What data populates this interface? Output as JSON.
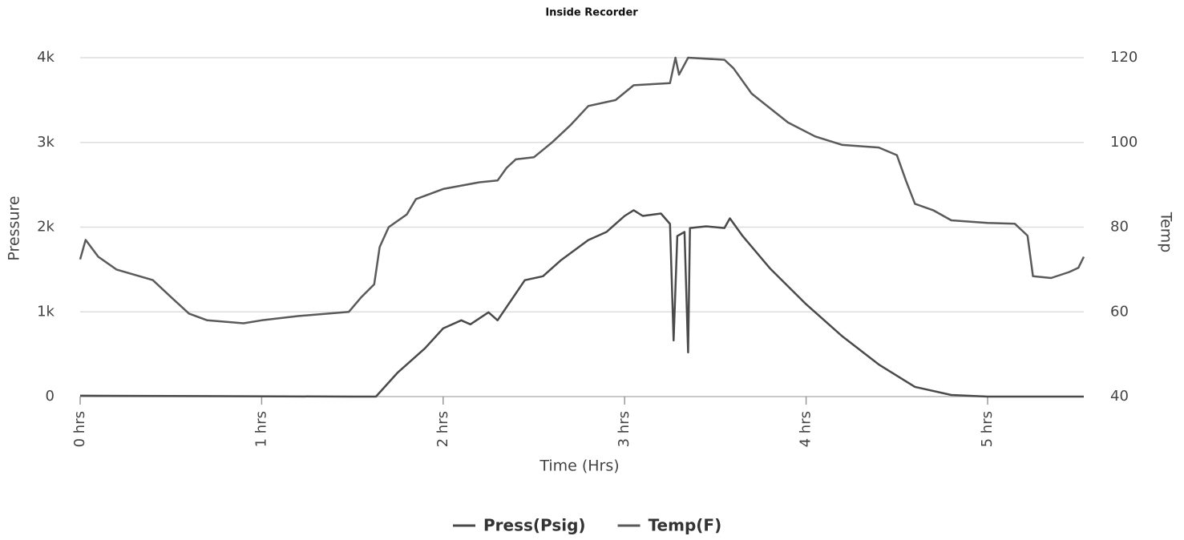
{
  "chart_data": {
    "type": "line",
    "title": "Inside Recorder",
    "x_label": "Time (Hrs)",
    "y_label": "Pressure",
    "y2_label": "Temp",
    "xlim": [
      0,
      5.53
    ],
    "xticks": [
      {
        "value": 0,
        "label": "0 hrs"
      },
      {
        "value": 1,
        "label": "1 hrs"
      },
      {
        "value": 2,
        "label": "2 hrs"
      },
      {
        "value": 3,
        "label": "3 hrs"
      },
      {
        "value": 4,
        "label": "4 hrs"
      },
      {
        "value": 5,
        "label": "5 hrs"
      }
    ],
    "ylim": [
      0,
      4000
    ],
    "yticks": [
      0,
      {
        "value": 1000,
        "label": "1k"
      },
      {
        "value": 2000,
        "label": "2k"
      },
      {
        "value": 3000,
        "label": "3k"
      },
      {
        "value": 4000,
        "label": "4k"
      }
    ],
    "y2lim": [
      40,
      120
    ],
    "y2ticks": [
      40,
      60,
      80,
      100,
      120
    ],
    "grid": true,
    "legend": "bottom",
    "series": [
      {
        "name": "Press(Psig)",
        "color": "#4a4a4a",
        "x": [
          0,
          1.5,
          1.63,
          1.75,
          1.9,
          2.0,
          2.1,
          2.15,
          2.25,
          2.3,
          2.45,
          2.55,
          2.65,
          2.8,
          2.9,
          3.0,
          3.05,
          3.1,
          3.2,
          3.25,
          3.27,
          3.29,
          3.33,
          3.35,
          3.36,
          3.45,
          3.55,
          3.58,
          3.65,
          3.8,
          4.0,
          4.2,
          4.4,
          4.6,
          4.8,
          5.0,
          5.53
        ],
        "values": [
          10,
          0,
          0,
          285,
          570,
          805,
          900,
          853,
          995,
          900,
          1374,
          1420,
          1611,
          1848,
          1943,
          2132,
          2200,
          2132,
          2161,
          2038,
          663,
          1895,
          1943,
          521,
          1990,
          2009,
          1990,
          2104,
          1895,
          1516,
          1090,
          710,
          379,
          114,
          19,
          0,
          0
        ]
      },
      {
        "name": "Temp(F)",
        "color": "#5a5a5a",
        "axis": "y2",
        "x": [
          0,
          0.03,
          0.1,
          0.2,
          0.4,
          0.5,
          0.6,
          0.7,
          0.9,
          1.0,
          1.2,
          1.48,
          1.55,
          1.62,
          1.65,
          1.7,
          1.8,
          1.85,
          2.0,
          2.2,
          2.3,
          2.35,
          2.4,
          2.5,
          2.6,
          2.7,
          2.8,
          2.95,
          3.05,
          3.25,
          3.28,
          3.3,
          3.35,
          3.55,
          3.6,
          3.7,
          3.9,
          4.05,
          4.2,
          4.4,
          4.5,
          4.55,
          4.6,
          4.7,
          4.8,
          5.0,
          5.15,
          5.22,
          5.25,
          5.35,
          5.45,
          5.5,
          5.53
        ],
        "values": [
          72.4,
          77,
          73,
          70,
          67.5,
          63.5,
          59.6,
          58,
          57.3,
          58,
          59,
          60,
          63.5,
          66.5,
          75.3,
          80,
          83,
          86.6,
          89,
          90.6,
          91,
          94,
          96,
          96.5,
          100,
          104,
          108.6,
          110,
          113.5,
          114,
          120,
          116,
          120,
          119.5,
          117.5,
          111.5,
          104.7,
          101.4,
          99.4,
          98.8,
          97,
          91,
          85.5,
          84,
          81.6,
          81,
          80.8,
          78,
          68.4,
          68,
          69.4,
          70.4,
          73
        ]
      }
    ]
  }
}
